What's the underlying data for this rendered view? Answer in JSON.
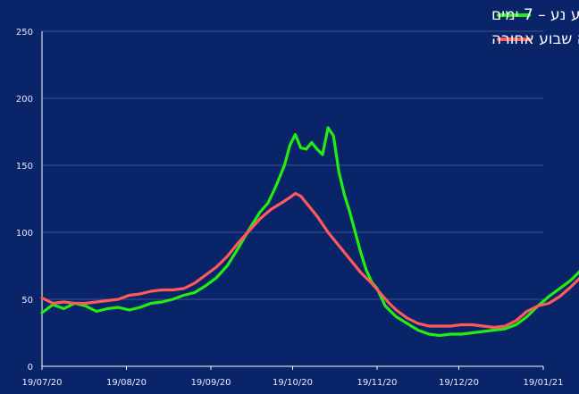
{
  "chart_data": {
    "type": "line",
    "title": "",
    "xlabel": "",
    "ylabel": "",
    "ylim": [
      0,
      250
    ],
    "yticks": [
      0,
      50,
      100,
      150,
      200,
      250
    ],
    "xticks": [
      "19/07/20",
      "19/08/20",
      "19/09/20",
      "19/10/20",
      "19/11/20",
      "19/12/20",
      "19/01/21"
    ],
    "grid": "horizontal",
    "legend_position": "top-right",
    "background": "#0a246a",
    "x_start": "2020-07-19",
    "series": [
      {
        "name": "¼ ממאומתים חדשים 60+ בממוצע נע – 7 ימים",
        "color": "#22ee11",
        "points": [
          [
            0,
            40
          ],
          [
            4,
            46
          ],
          [
            8,
            43
          ],
          [
            12,
            47
          ],
          [
            16,
            45
          ],
          [
            20,
            41
          ],
          [
            24,
            43
          ],
          [
            28,
            44
          ],
          [
            32,
            42
          ],
          [
            36,
            44
          ],
          [
            40,
            47
          ],
          [
            44,
            48
          ],
          [
            48,
            50
          ],
          [
            52,
            53
          ],
          [
            56,
            55
          ],
          [
            60,
            60
          ],
          [
            64,
            66
          ],
          [
            68,
            75
          ],
          [
            72,
            88
          ],
          [
            76,
            102
          ],
          [
            80,
            115
          ],
          [
            83,
            122
          ],
          [
            86,
            135
          ],
          [
            89,
            150
          ],
          [
            91,
            165
          ],
          [
            93,
            173
          ],
          [
            95,
            163
          ],
          [
            97,
            162
          ],
          [
            99,
            167
          ],
          [
            101,
            162
          ],
          [
            103,
            158
          ],
          [
            105,
            178
          ],
          [
            107,
            172
          ],
          [
            109,
            145
          ],
          [
            111,
            128
          ],
          [
            113,
            115
          ],
          [
            115,
            100
          ],
          [
            117,
            85
          ],
          [
            119,
            72
          ],
          [
            121,
            63
          ],
          [
            123,
            58
          ],
          [
            126,
            45
          ],
          [
            130,
            37
          ],
          [
            134,
            32
          ],
          [
            138,
            27
          ],
          [
            142,
            24
          ],
          [
            146,
            23
          ],
          [
            150,
            24
          ],
          [
            154,
            24
          ],
          [
            158,
            25
          ],
          [
            162,
            26
          ],
          [
            166,
            27
          ],
          [
            170,
            28
          ],
          [
            174,
            31
          ],
          [
            178,
            37
          ],
          [
            182,
            45
          ],
          [
            186,
            52
          ],
          [
            190,
            58
          ],
          [
            194,
            64
          ],
          [
            198,
            72
          ],
          [
            202,
            80
          ],
          [
            206,
            90
          ],
          [
            210,
            102
          ],
          [
            214,
            115
          ],
          [
            218,
            128
          ],
          [
            222,
            145
          ],
          [
            226,
            158
          ],
          [
            230,
            175
          ],
          [
            233,
            190
          ],
          [
            236,
            205
          ],
          [
            239,
            213
          ],
          [
            241,
            222
          ],
          [
            243,
            225
          ],
          [
            245,
            221
          ],
          [
            247,
            219
          ]
        ]
      },
      {
        "name": "קשים חדשים בממוצע נע 7 ימים בהסטה שבוע אחורה",
        "color": "#ff5a5a",
        "points": [
          [
            0,
            51
          ],
          [
            4,
            47
          ],
          [
            8,
            48
          ],
          [
            12,
            47
          ],
          [
            16,
            47
          ],
          [
            20,
            48
          ],
          [
            24,
            49
          ],
          [
            28,
            50
          ],
          [
            32,
            53
          ],
          [
            36,
            54
          ],
          [
            40,
            56
          ],
          [
            44,
            57
          ],
          [
            48,
            57
          ],
          [
            52,
            58
          ],
          [
            56,
            62
          ],
          [
            60,
            68
          ],
          [
            64,
            74
          ],
          [
            68,
            82
          ],
          [
            72,
            92
          ],
          [
            76,
            101
          ],
          [
            80,
            110
          ],
          [
            84,
            117
          ],
          [
            88,
            122
          ],
          [
            91,
            126
          ],
          [
            93,
            129
          ],
          [
            95,
            127
          ],
          [
            97,
            122
          ],
          [
            99,
            117
          ],
          [
            101,
            112
          ],
          [
            103,
            106
          ],
          [
            105,
            100
          ],
          [
            107,
            95
          ],
          [
            109,
            90
          ],
          [
            111,
            85
          ],
          [
            113,
            80
          ],
          [
            115,
            75
          ],
          [
            117,
            70
          ],
          [
            119,
            66
          ],
          [
            121,
            62
          ],
          [
            124,
            55
          ],
          [
            127,
            48
          ],
          [
            130,
            42
          ],
          [
            134,
            36
          ],
          [
            138,
            32
          ],
          [
            142,
            30
          ],
          [
            146,
            30
          ],
          [
            150,
            30
          ],
          [
            154,
            31
          ],
          [
            158,
            31
          ],
          [
            162,
            30
          ],
          [
            166,
            29
          ],
          [
            170,
            30
          ],
          [
            174,
            34
          ],
          [
            178,
            41
          ],
          [
            182,
            45
          ],
          [
            186,
            47
          ],
          [
            190,
            52
          ],
          [
            194,
            59
          ],
          [
            198,
            67
          ],
          [
            202,
            77
          ],
          [
            206,
            87
          ],
          [
            210,
            96
          ],
          [
            214,
            105
          ],
          [
            218,
            116
          ],
          [
            222,
            128
          ],
          [
            226,
            140
          ],
          [
            230,
            152
          ],
          [
            234,
            160
          ],
          [
            237,
            167
          ],
          [
            240,
            170
          ],
          [
            243,
            170
          ],
          [
            246,
            167
          ]
        ]
      }
    ]
  }
}
